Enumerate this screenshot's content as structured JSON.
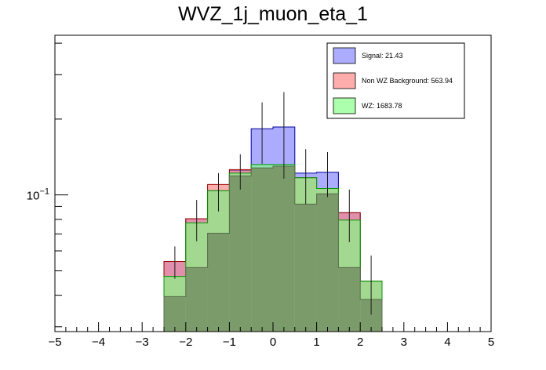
{
  "chart_data": {
    "type": "histogram",
    "title": "WVZ_1j_muon_eta_1",
    "xlabel": "",
    "ylabel": "",
    "xlim": [
      -5,
      5
    ],
    "ylim": [
      0.0287,
      0.43
    ],
    "ylog": true,
    "grid": false,
    "stacked": false,
    "bin_edges": [
      -2.5,
      -2.0,
      -1.5,
      -1.0,
      -0.5,
      0.0,
      0.5,
      1.0,
      1.5,
      2.0,
      2.5
    ],
    "y_ticks": [
      {
        "value": 0.1,
        "base": "10",
        "exp": "−1"
      }
    ],
    "x_ticks": [
      {
        "value": -5,
        "label": "−5"
      },
      {
        "value": -4,
        "label": "−4"
      },
      {
        "value": -3,
        "label": "−3"
      },
      {
        "value": -2,
        "label": "−2"
      },
      {
        "value": -1,
        "label": "−1"
      },
      {
        "value": 0,
        "label": "0"
      },
      {
        "value": 1,
        "label": "1"
      },
      {
        "value": 2,
        "label": "2"
      },
      {
        "value": 3,
        "label": "3"
      },
      {
        "value": 4,
        "label": "4"
      },
      {
        "value": 5,
        "label": "5"
      }
    ],
    "series": [
      {
        "key": "signal",
        "color": "#8080ff",
        "opacity": 0.65,
        "edge": "#000099",
        "values": [
          0.0545,
          0.0805,
          0.104,
          0.125,
          0.183,
          0.186,
          0.122,
          0.123,
          0.085,
          0.0455
        ],
        "errors": [
          0.008,
          0.015,
          0.018,
          0.02,
          0.05,
          0.07,
          0.03,
          0.025,
          0.02,
          0.012
        ]
      },
      {
        "key": "non_wz",
        "color": "#ff8080",
        "opacity": 0.65,
        "edge": "#990000",
        "values": [
          0.0545,
          0.0805,
          0.11,
          0.126,
          0.128,
          0.13,
          0.117,
          0.106,
          0.085,
          0.0455
        ]
      },
      {
        "key": "wz",
        "color": "#80ff80",
        "opacity": 0.65,
        "edge": "#009900",
        "values": [
          0.0475,
          0.0775,
          0.104,
          0.122,
          0.132,
          0.132,
          0.117,
          0.106,
          0.0795,
          0.0455
        ]
      },
      {
        "key": "overlap",
        "color": "#7b9b6a",
        "opacity": 1.0,
        "edge": "#556b4a",
        "values": [
          0.0395,
          0.0515,
          0.0705,
          0.119,
          0.128,
          0.13,
          0.092,
          0.101,
          0.0515,
          0.0385
        ]
      }
    ],
    "legend": {
      "position": "top-right",
      "entries": [
        {
          "label": "Signal: 21.43",
          "color": "#8080ff"
        },
        {
          "label": "Non WZ Background: 563.94",
          "color": "#ff8080"
        },
        {
          "label": "WZ: 1683.78",
          "color": "#80ff80"
        }
      ]
    }
  }
}
